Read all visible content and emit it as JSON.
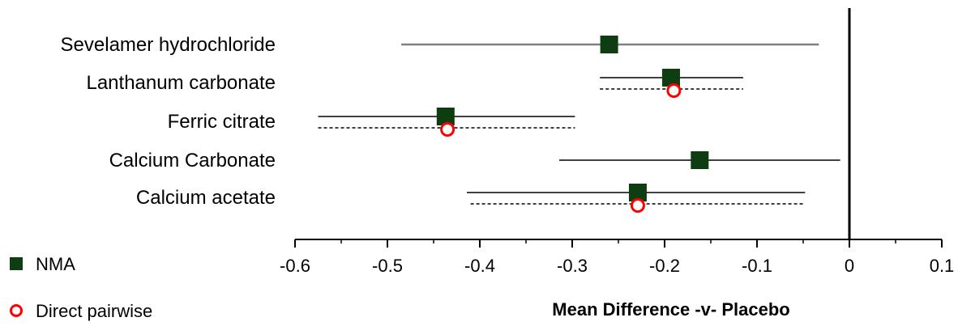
{
  "chart_data": {
    "type": "forest",
    "xlabel": "Mean Difference -v- Placebo",
    "xlim": [
      -0.6,
      0.1
    ],
    "x_ticks": [
      "-0.6",
      "-0.5",
      "-0.4",
      "-0.3",
      "-0.2",
      "-0.1",
      "0",
      "0.1"
    ],
    "x_tick_values": [
      -0.6,
      -0.5,
      -0.4,
      -0.3,
      -0.2,
      -0.1,
      0,
      0.1
    ],
    "reference_line": 0,
    "categories": [
      "Sevelamer hydrochloride",
      "Lanthanum carbonate",
      "Ferric citrate",
      "Calcium Carbonate",
      "Calcium acetate"
    ],
    "series": [
      {
        "name": "NMA",
        "color": "#0f3d12",
        "marker": "filled-square",
        "line_style": "solid",
        "points": [
          {
            "category": "Sevelamer hydrochloride",
            "estimate": -0.26,
            "lower": -0.485,
            "upper": -0.033
          },
          {
            "category": "Lanthanum carbonate",
            "estimate": -0.193,
            "lower": -0.27,
            "upper": -0.115
          },
          {
            "category": "Ferric citrate",
            "estimate": -0.437,
            "lower": -0.575,
            "upper": -0.297
          },
          {
            "category": "Calcium Carbonate",
            "estimate": -0.162,
            "lower": -0.314,
            "upper": -0.01
          },
          {
            "category": "Calcium acetate",
            "estimate": -0.229,
            "lower": -0.414,
            "upper": -0.048
          }
        ]
      },
      {
        "name": "Direct pairwise",
        "color": "#ff0000",
        "marker": "open-circle",
        "line_style": "dashed",
        "points": [
          {
            "category": "Lanthanum carbonate",
            "estimate": -0.19,
            "lower": -0.27,
            "upper": -0.115
          },
          {
            "category": "Ferric citrate",
            "estimate": -0.435,
            "lower": -0.575,
            "upper": -0.297
          },
          {
            "category": "Calcium acetate",
            "estimate": -0.229,
            "lower": -0.41,
            "upper": -0.048
          }
        ]
      }
    ],
    "legend": {
      "position": "bottom-left",
      "items": [
        {
          "label": "NMA",
          "marker": "filled-square",
          "color": "#0f3d12"
        },
        {
          "label": "Direct pairwise",
          "marker": "open-circle",
          "color": "#ff0000"
        }
      ]
    },
    "grid": false
  }
}
